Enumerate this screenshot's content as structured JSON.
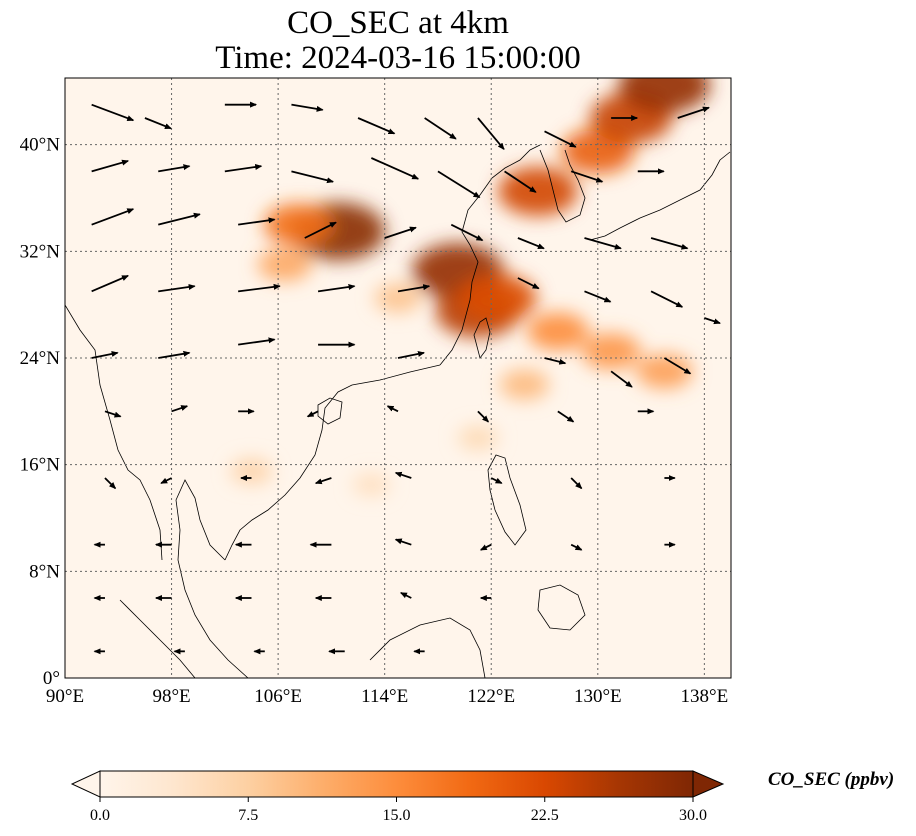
{
  "title": {
    "line1": "CO_SEC at 4km",
    "line2": "Time: 2024-03-16 15:00:00"
  },
  "map": {
    "lon_range": [
      90,
      140
    ],
    "lat_range": [
      0,
      45
    ],
    "lon_ticks": [
      {
        "value": 90,
        "label": "90°E"
      },
      {
        "value": 98,
        "label": "98°E"
      },
      {
        "value": 106,
        "label": "106°E"
      },
      {
        "value": 114,
        "label": "114°E"
      },
      {
        "value": 122,
        "label": "122°E"
      },
      {
        "value": 130,
        "label": "130°E"
      },
      {
        "value": 138,
        "label": "138°E"
      }
    ],
    "lat_ticks": [
      {
        "value": 0,
        "label": "0°"
      },
      {
        "value": 8,
        "label": "8°N"
      },
      {
        "value": 16,
        "label": "16°N"
      },
      {
        "value": 24,
        "label": "24°N"
      },
      {
        "value": 32,
        "label": "32°N"
      },
      {
        "value": 40,
        "label": "40°N"
      }
    ],
    "gridlines": "dotted",
    "background_color": "#fff5eb",
    "coastline_color": "#000000"
  },
  "colorbar": {
    "label": "CO_SEC (ppbv)",
    "min": 0.0,
    "max": 30.0,
    "extend": "both",
    "colormap": [
      "#fff5eb",
      "#fee6ce",
      "#fdd0a2",
      "#fdae6b",
      "#fd8d3c",
      "#f16913",
      "#d94801",
      "#a63603",
      "#7f2704"
    ],
    "ticks": [
      {
        "value": 0.0,
        "label": "0.0"
      },
      {
        "value": 7.5,
        "label": "7.5"
      },
      {
        "value": 15.0,
        "label": "15.0"
      },
      {
        "value": 22.5,
        "label": "22.5"
      },
      {
        "value": 30.0,
        "label": "30.0"
      }
    ]
  },
  "plumes": [
    {
      "lon": 110.5,
      "lat": 33.5,
      "value": 29
    },
    {
      "lon": 107.5,
      "lat": 34.0,
      "value": 18
    },
    {
      "lon": 106.5,
      "lat": 31.0,
      "value": 12
    },
    {
      "lon": 119.5,
      "lat": 30.5,
      "value": 28
    },
    {
      "lon": 121.0,
      "lat": 27.5,
      "value": 25
    },
    {
      "lon": 122.5,
      "lat": 28.5,
      "value": 22
    },
    {
      "lon": 125.5,
      "lat": 36.5,
      "value": 23
    },
    {
      "lon": 130.0,
      "lat": 39.5,
      "value": 20
    },
    {
      "lon": 132.5,
      "lat": 42.0,
      "value": 24
    },
    {
      "lon": 135.0,
      "lat": 44.5,
      "value": 28
    },
    {
      "lon": 127.0,
      "lat": 26.0,
      "value": 15
    },
    {
      "lon": 131.0,
      "lat": 24.5,
      "value": 14
    },
    {
      "lon": 135.0,
      "lat": 23.0,
      "value": 13
    },
    {
      "lon": 124.5,
      "lat": 22.0,
      "value": 10
    },
    {
      "lon": 115.0,
      "lat": 28.5,
      "value": 9
    },
    {
      "lon": 104.0,
      "lat": 15.5,
      "value": 7
    },
    {
      "lon": 113.0,
      "lat": 14.5,
      "value": 5
    },
    {
      "lon": 121.0,
      "lat": 18.0,
      "value": 6
    }
  ],
  "wind": {
    "color": "#000000",
    "vectors": [
      {
        "lon": 92,
        "lat": 43,
        "u": 8,
        "v": -3
      },
      {
        "lon": 96,
        "lat": 42,
        "u": 5,
        "v": -2
      },
      {
        "lon": 102,
        "lat": 43,
        "u": 6,
        "v": 0
      },
      {
        "lon": 107,
        "lat": 43,
        "u": 6,
        "v": -1
      },
      {
        "lon": 112,
        "lat": 42,
        "u": 7,
        "v": -3
      },
      {
        "lon": 117,
        "lat": 42,
        "u": 6,
        "v": -4
      },
      {
        "lon": 121,
        "lat": 42,
        "u": 5,
        "v": -6
      },
      {
        "lon": 126,
        "lat": 41,
        "u": 6,
        "v": -3
      },
      {
        "lon": 131,
        "lat": 42,
        "u": 5,
        "v": 0
      },
      {
        "lon": 136,
        "lat": 42,
        "u": 6,
        "v": 2
      },
      {
        "lon": 92,
        "lat": 38,
        "u": 7,
        "v": 2
      },
      {
        "lon": 97,
        "lat": 38,
        "u": 6,
        "v": 1
      },
      {
        "lon": 102,
        "lat": 38,
        "u": 7,
        "v": 1
      },
      {
        "lon": 107,
        "lat": 38,
        "u": 8,
        "v": -2
      },
      {
        "lon": 113,
        "lat": 39,
        "u": 9,
        "v": -4
      },
      {
        "lon": 118,
        "lat": 38,
        "u": 8,
        "v": -5
      },
      {
        "lon": 123,
        "lat": 38,
        "u": 6,
        "v": -4
      },
      {
        "lon": 128,
        "lat": 38,
        "u": 6,
        "v": -2
      },
      {
        "lon": 133,
        "lat": 38,
        "u": 5,
        "v": 0
      },
      {
        "lon": 92,
        "lat": 34,
        "u": 8,
        "v": 3
      },
      {
        "lon": 97,
        "lat": 34,
        "u": 8,
        "v": 2
      },
      {
        "lon": 103,
        "lat": 34,
        "u": 7,
        "v": 1
      },
      {
        "lon": 108,
        "lat": 33,
        "u": 6,
        "v": 3
      },
      {
        "lon": 114,
        "lat": 33,
        "u": 6,
        "v": 2
      },
      {
        "lon": 119,
        "lat": 34,
        "u": 6,
        "v": -3
      },
      {
        "lon": 124,
        "lat": 33,
        "u": 5,
        "v": -2
      },
      {
        "lon": 129,
        "lat": 33,
        "u": 7,
        "v": -2
      },
      {
        "lon": 134,
        "lat": 33,
        "u": 7,
        "v": -2
      },
      {
        "lon": 92,
        "lat": 29,
        "u": 7,
        "v": 3
      },
      {
        "lon": 97,
        "lat": 29,
        "u": 7,
        "v": 1
      },
      {
        "lon": 103,
        "lat": 29,
        "u": 8,
        "v": 1
      },
      {
        "lon": 109,
        "lat": 29,
        "u": 7,
        "v": 1
      },
      {
        "lon": 115,
        "lat": 29,
        "u": 6,
        "v": 1
      },
      {
        "lon": 124,
        "lat": 30,
        "u": 4,
        "v": -2
      },
      {
        "lon": 129,
        "lat": 29,
        "u": 5,
        "v": -2
      },
      {
        "lon": 134,
        "lat": 29,
        "u": 6,
        "v": -3
      },
      {
        "lon": 138,
        "lat": 27,
        "u": 3,
        "v": -1
      },
      {
        "lon": 92,
        "lat": 24,
        "u": 5,
        "v": 1
      },
      {
        "lon": 97,
        "lat": 24,
        "u": 6,
        "v": 1
      },
      {
        "lon": 103,
        "lat": 25,
        "u": 7,
        "v": 1
      },
      {
        "lon": 109,
        "lat": 25,
        "u": 7,
        "v": 0
      },
      {
        "lon": 115,
        "lat": 24,
        "u": 5,
        "v": 1
      },
      {
        "lon": 126,
        "lat": 24,
        "u": 4,
        "v": -1
      },
      {
        "lon": 131,
        "lat": 23,
        "u": 4,
        "v": -3
      },
      {
        "lon": 135,
        "lat": 24,
        "u": 5,
        "v": -3
      },
      {
        "lon": 93,
        "lat": 20,
        "u": 3,
        "v": -1
      },
      {
        "lon": 98,
        "lat": 20,
        "u": 3,
        "v": 1
      },
      {
        "lon": 103,
        "lat": 20,
        "u": 3,
        "v": 0
      },
      {
        "lon": 109,
        "lat": 20,
        "u": -2,
        "v": -1
      },
      {
        "lon": 115,
        "lat": 20,
        "u": -2,
        "v": 1
      },
      {
        "lon": 121,
        "lat": 20,
        "u": 2,
        "v": -2
      },
      {
        "lon": 127,
        "lat": 20,
        "u": 3,
        "v": -2
      },
      {
        "lon": 133,
        "lat": 20,
        "u": 3,
        "v": 0
      },
      {
        "lon": 93,
        "lat": 15,
        "u": 2,
        "v": -2
      },
      {
        "lon": 98,
        "lat": 15,
        "u": -2,
        "v": -1
      },
      {
        "lon": 104,
        "lat": 15,
        "u": -2,
        "v": 0
      },
      {
        "lon": 110,
        "lat": 15,
        "u": -3,
        "v": -1
      },
      {
        "lon": 116,
        "lat": 15,
        "u": -3,
        "v": 1
      },
      {
        "lon": 122,
        "lat": 15,
        "u": 2,
        "v": -1
      },
      {
        "lon": 128,
        "lat": 15,
        "u": 2,
        "v": -2
      },
      {
        "lon": 135,
        "lat": 15,
        "u": 2,
        "v": 0
      },
      {
        "lon": 93,
        "lat": 10,
        "u": -2,
        "v": 0
      },
      {
        "lon": 98,
        "lat": 10,
        "u": -3,
        "v": 0
      },
      {
        "lon": 104,
        "lat": 10,
        "u": -3,
        "v": 0
      },
      {
        "lon": 110,
        "lat": 10,
        "u": -4,
        "v": 0
      },
      {
        "lon": 116,
        "lat": 10,
        "u": -3,
        "v": 1
      },
      {
        "lon": 122,
        "lat": 10,
        "u": -2,
        "v": -1
      },
      {
        "lon": 128,
        "lat": 10,
        "u": 2,
        "v": -1
      },
      {
        "lon": 135,
        "lat": 10,
        "u": 2,
        "v": 0
      },
      {
        "lon": 93,
        "lat": 6,
        "u": -2,
        "v": 0
      },
      {
        "lon": 98,
        "lat": 6,
        "u": -3,
        "v": 0
      },
      {
        "lon": 104,
        "lat": 6,
        "u": -3,
        "v": 0
      },
      {
        "lon": 110,
        "lat": 6,
        "u": -3,
        "v": 0
      },
      {
        "lon": 116,
        "lat": 6,
        "u": -2,
        "v": 1
      },
      {
        "lon": 122,
        "lat": 6,
        "u": -2,
        "v": 0
      },
      {
        "lon": 93,
        "lat": 2,
        "u": -2,
        "v": 0
      },
      {
        "lon": 99,
        "lat": 2,
        "u": -2,
        "v": 0
      },
      {
        "lon": 105,
        "lat": 2,
        "u": -2,
        "v": 0
      },
      {
        "lon": 111,
        "lat": 2,
        "u": -3,
        "v": 0
      },
      {
        "lon": 117,
        "lat": 2,
        "u": -2,
        "v": 0
      }
    ]
  }
}
